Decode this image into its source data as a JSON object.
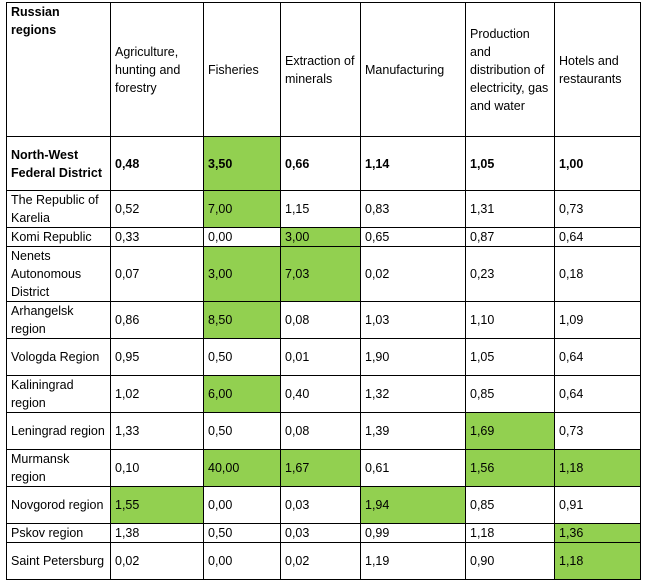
{
  "table": {
    "headers": [
      "Russian regions",
      "Agriculture, hunting and forestry",
      "Fisheries",
      "Extraction of minerals",
      "Manufacturing",
      "Production and distribution of electricity, gas and water",
      "Hotels and restaurants"
    ],
    "highlight_color": "#92d050",
    "rows": [
      {
        "region": "North-West Federal District",
        "values": [
          "0,48",
          "3,50",
          "0,66",
          "1,14",
          "1,05",
          "1,00"
        ],
        "highlight": [
          false,
          true,
          false,
          false,
          false,
          false
        ],
        "bold": true
      },
      {
        "region": "The Republic of Karelia",
        "values": [
          "0,52",
          "7,00",
          "1,15",
          "0,83",
          "1,31",
          "0,73"
        ],
        "highlight": [
          false,
          true,
          false,
          false,
          false,
          false
        ],
        "bold": false
      },
      {
        "region": "Komi Republic",
        "values": [
          "0,33",
          "0,00",
          "3,00",
          "0,65",
          "0,87",
          "0,64"
        ],
        "highlight": [
          false,
          false,
          true,
          false,
          false,
          false
        ],
        "bold": false
      },
      {
        "region": "Nenets Autonomous District",
        "values": [
          "0,07",
          "3,00",
          "7,03",
          "0,02",
          "0,23",
          "0,18"
        ],
        "highlight": [
          false,
          true,
          true,
          false,
          false,
          false
        ],
        "bold": false
      },
      {
        "region": "Arhangelsk region",
        "values": [
          "0,86",
          "8,50",
          "0,08",
          "1,03",
          "1,10",
          "1,09"
        ],
        "highlight": [
          false,
          true,
          false,
          false,
          false,
          false
        ],
        "bold": false
      },
      {
        "region": "Vologda Region",
        "values": [
          "0,95",
          "0,50",
          "0,01",
          "1,90",
          "1,05",
          "0,64"
        ],
        "highlight": [
          false,
          false,
          false,
          false,
          false,
          false
        ],
        "bold": false
      },
      {
        "region": "Kaliningrad region",
        "values": [
          "1,02",
          "6,00",
          "0,40",
          "1,32",
          "0,85",
          "0,64"
        ],
        "highlight": [
          false,
          true,
          false,
          false,
          false,
          false
        ],
        "bold": false
      },
      {
        "region": "Leningrad region",
        "values": [
          "1,33",
          "0,50",
          "0,08",
          "1,39",
          "1,69",
          "0,73"
        ],
        "highlight": [
          false,
          false,
          false,
          false,
          true,
          false
        ],
        "bold": false
      },
      {
        "region": "Murmansk region",
        "values": [
          "0,10",
          "40,00",
          "1,67",
          "0,61",
          "1,56",
          "1,18"
        ],
        "highlight": [
          false,
          true,
          true,
          false,
          true,
          true
        ],
        "bold": false
      },
      {
        "region": "Novgorod region",
        "values": [
          "1,55",
          "0,00",
          "0,03",
          "1,94",
          "0,85",
          "0,91"
        ],
        "highlight": [
          true,
          false,
          false,
          true,
          false,
          false
        ],
        "bold": false
      },
      {
        "region": "Pskov region",
        "values": [
          "1,38",
          "0,50",
          "0,03",
          "0,99",
          "1,18",
          "1,36"
        ],
        "highlight": [
          false,
          false,
          false,
          false,
          false,
          true
        ],
        "bold": false
      },
      {
        "region": "Saint Petersburg",
        "values": [
          "0,02",
          "0,00",
          "0,02",
          "1,19",
          "0,90",
          "1,18"
        ],
        "highlight": [
          false,
          false,
          false,
          false,
          false,
          true
        ],
        "bold": false
      }
    ]
  }
}
